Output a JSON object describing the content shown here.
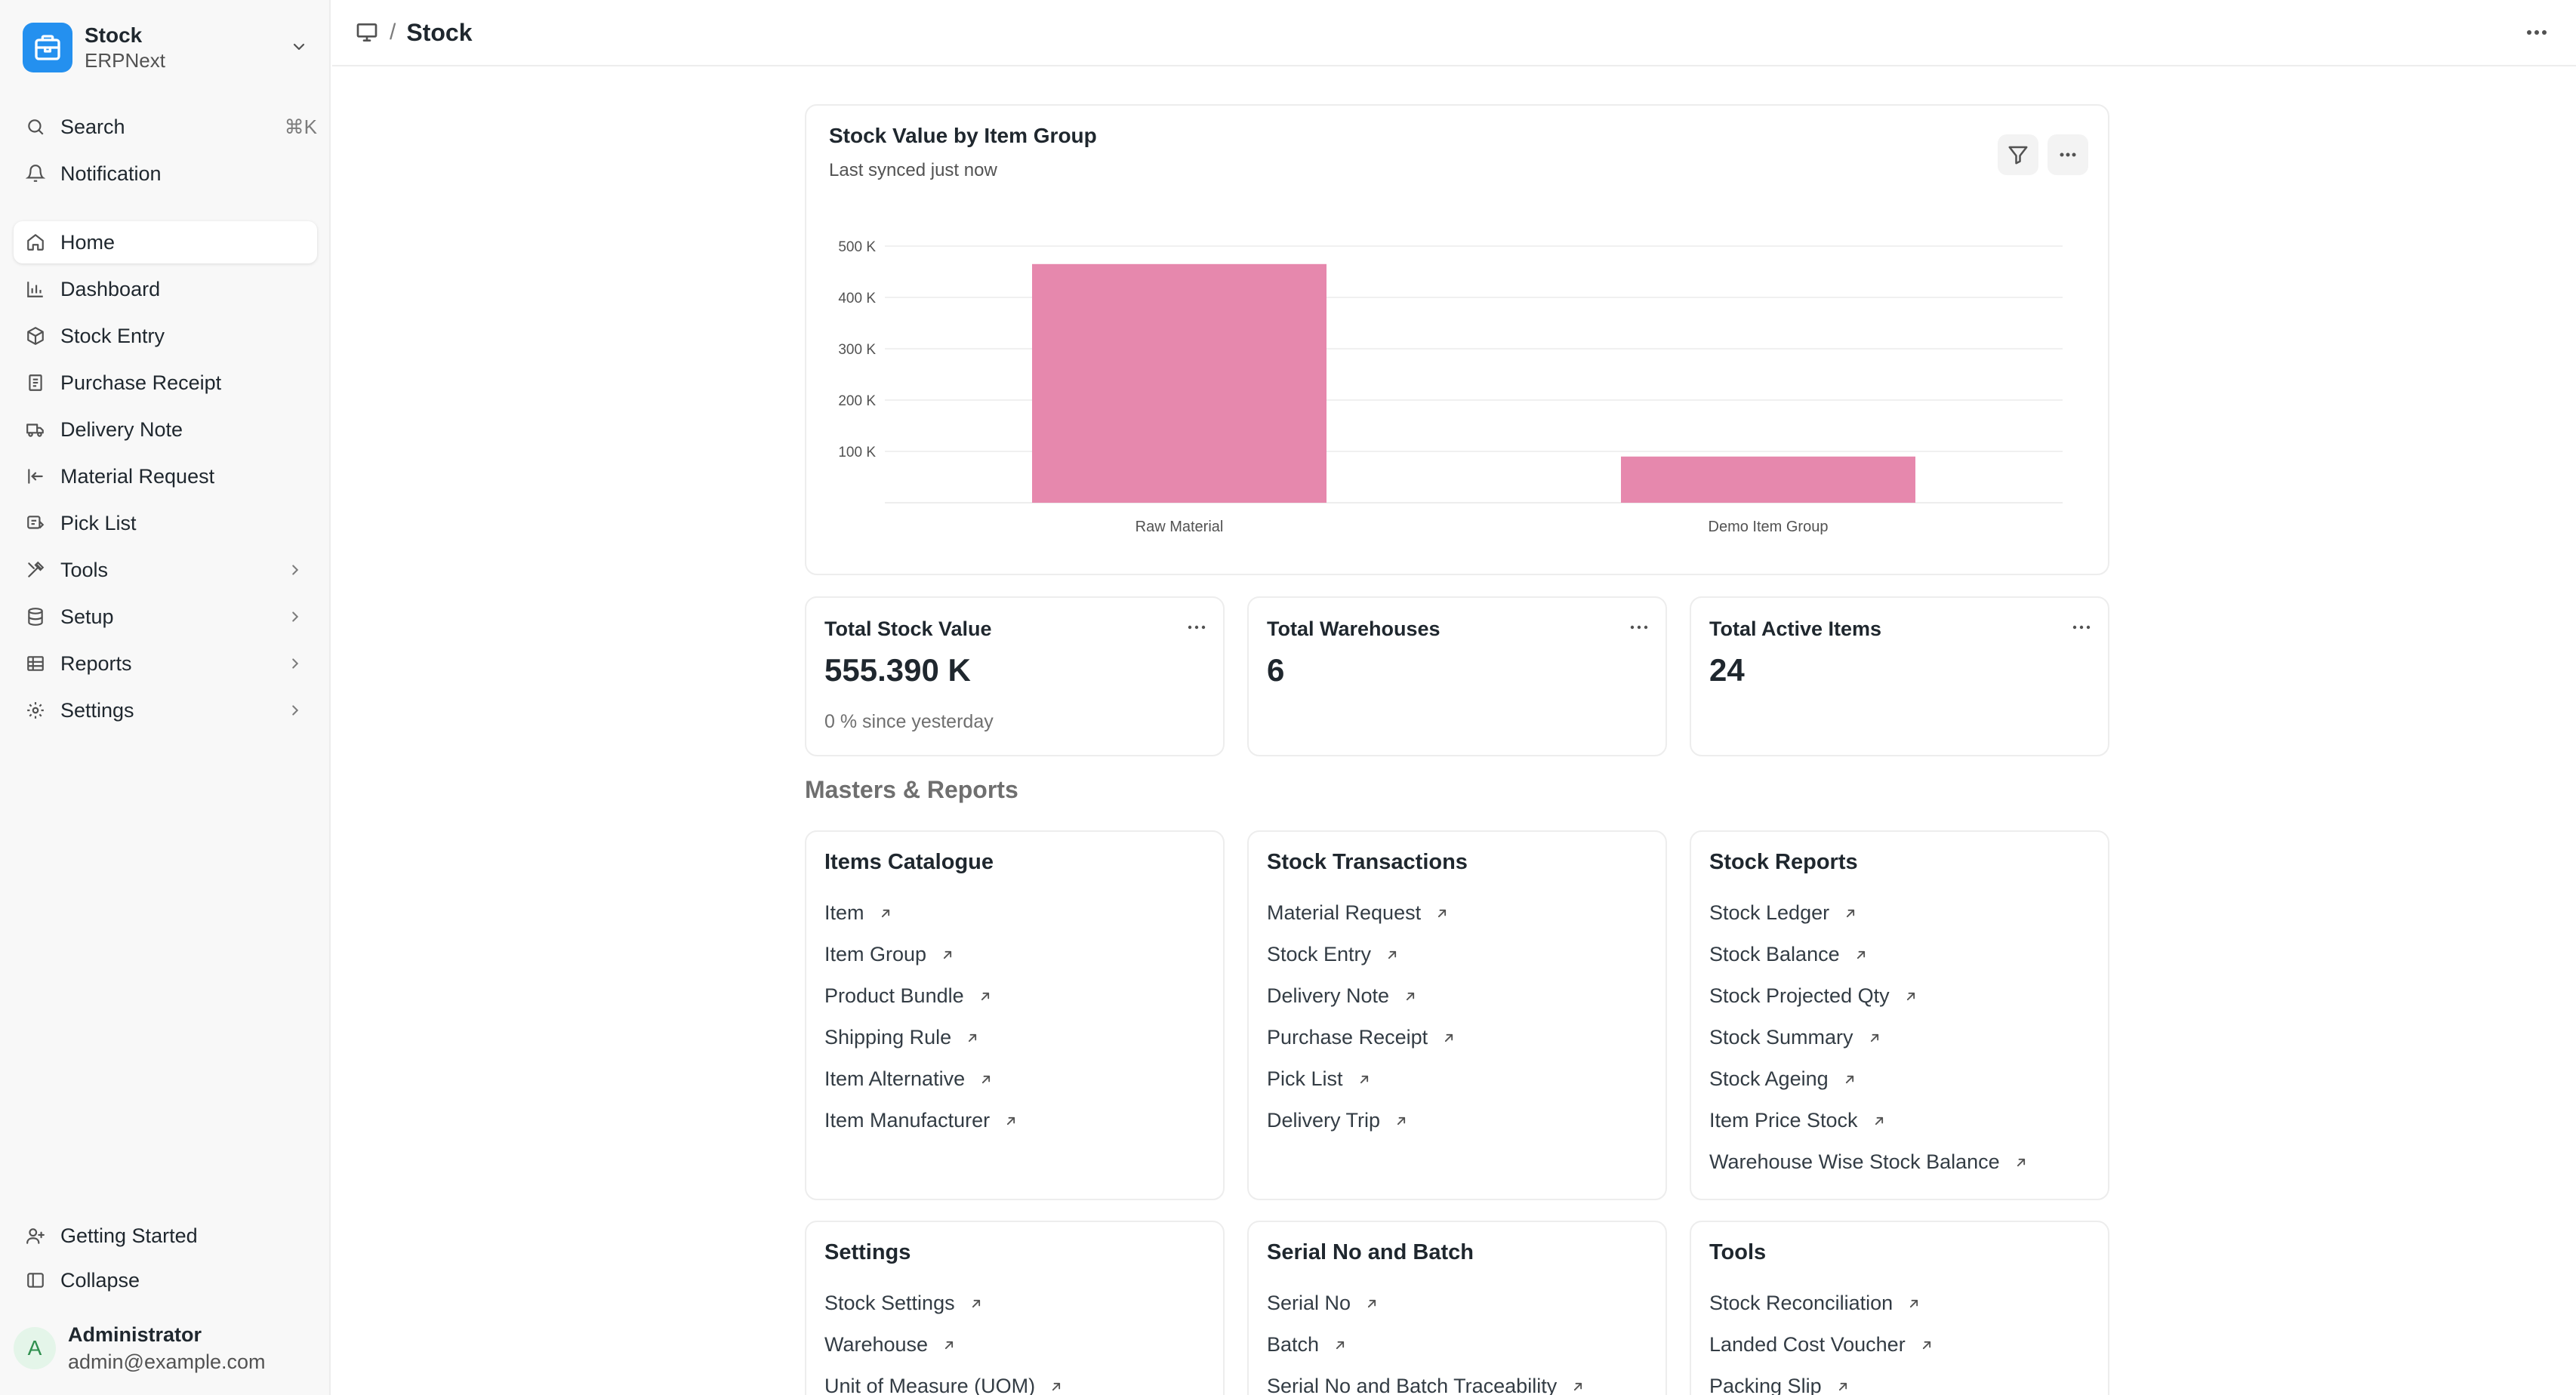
{
  "app": {
    "name": "Stock",
    "subtitle": "ERPNext",
    "brand_color": "#2490ef"
  },
  "sidebar": {
    "search_label": "Search",
    "search_shortcut": "⌘K",
    "notification_label": "Notification",
    "items": [
      {
        "label": "Home",
        "icon": "home-icon",
        "active": true
      },
      {
        "label": "Dashboard",
        "icon": "bar-chart-icon"
      },
      {
        "label": "Stock Entry",
        "icon": "box-icon"
      },
      {
        "label": "Purchase Receipt",
        "icon": "receipt-icon"
      },
      {
        "label": "Delivery Note",
        "icon": "truck-icon"
      },
      {
        "label": "Material Request",
        "icon": "arrow-left-bar-icon"
      },
      {
        "label": "Pick List",
        "icon": "pick-list-icon"
      },
      {
        "label": "Tools",
        "icon": "tools-icon",
        "expandable": true
      },
      {
        "label": "Setup",
        "icon": "database-icon",
        "expandable": true
      },
      {
        "label": "Reports",
        "icon": "table-icon",
        "expandable": true
      },
      {
        "label": "Settings",
        "icon": "gear-icon",
        "expandable": true
      }
    ],
    "getting_started": "Getting Started",
    "collapse": "Collapse",
    "user": {
      "initial": "A",
      "name": "Administrator",
      "email": "admin@example.com"
    }
  },
  "topbar": {
    "breadcrumb": "Stock"
  },
  "chart": {
    "title": "Stock Value by Item Group",
    "subtitle": "Last synced just now"
  },
  "chart_data": {
    "type": "bar",
    "title": "Stock Value by Item Group",
    "categories": [
      "Raw Material",
      "Demo Item Group"
    ],
    "values": [
      465000,
      90000
    ],
    "ylim": [
      0,
      500000
    ],
    "yticks": [
      100000,
      200000,
      300000,
      400000,
      500000
    ],
    "ytick_labels": [
      "100 K",
      "200 K",
      "300 K",
      "400 K",
      "500 K"
    ],
    "color": "#e688ad",
    "grid": true
  },
  "stats": [
    {
      "label": "Total Stock Value",
      "value": "555.390 K",
      "sub": "0 % since yesterday"
    },
    {
      "label": "Total Warehouses",
      "value": "6",
      "sub": ""
    },
    {
      "label": "Total Active Items",
      "value": "24",
      "sub": ""
    }
  ],
  "section_title": "Masters & Reports",
  "link_cards": [
    {
      "title": "Items Catalogue",
      "links": [
        "Item",
        "Item Group",
        "Product Bundle",
        "Shipping Rule",
        "Item Alternative",
        "Item Manufacturer"
      ]
    },
    {
      "title": "Stock Transactions",
      "links": [
        "Material Request",
        "Stock Entry",
        "Delivery Note",
        "Purchase Receipt",
        "Pick List",
        "Delivery Trip"
      ]
    },
    {
      "title": "Stock Reports",
      "links": [
        "Stock Ledger",
        "Stock Balance",
        "Stock Projected Qty",
        "Stock Summary",
        "Stock Ageing",
        "Item Price Stock",
        "Warehouse Wise Stock Balance"
      ]
    },
    {
      "title": "Settings",
      "links": [
        "Stock Settings",
        "Warehouse",
        "Unit of Measure (UOM)"
      ]
    },
    {
      "title": "Serial No and Batch",
      "links": [
        "Serial No",
        "Batch",
        "Serial No and Batch Traceability"
      ]
    },
    {
      "title": "Tools",
      "links": [
        "Stock Reconciliation",
        "Landed Cost Voucher",
        "Packing Slip"
      ]
    }
  ]
}
